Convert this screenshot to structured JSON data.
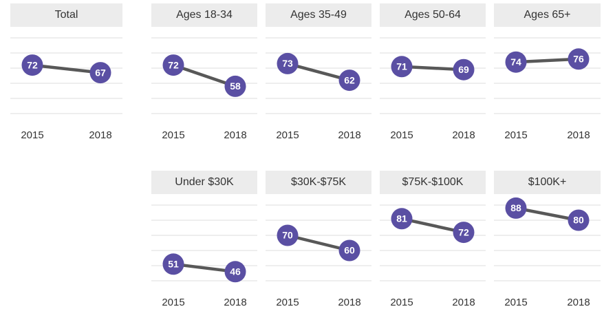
{
  "chart_data": [
    {
      "type": "line",
      "title": "Total",
      "categories": [
        "2015",
        "2018"
      ],
      "values": [
        72,
        67
      ],
      "color": "#5a4fa3",
      "ylim": [
        40,
        90
      ],
      "yticks": [
        40,
        50,
        60,
        70,
        80,
        90
      ],
      "grid": true
    },
    {
      "type": "line",
      "title": "Ages 18-34",
      "categories": [
        "2015",
        "2018"
      ],
      "values": [
        72,
        58
      ],
      "color": "#5a4fa3",
      "ylim": [
        40,
        90
      ],
      "yticks": [
        40,
        50,
        60,
        70,
        80,
        90
      ],
      "grid": true
    },
    {
      "type": "line",
      "title": "Ages 35-49",
      "categories": [
        "2015",
        "2018"
      ],
      "values": [
        73,
        62
      ],
      "color": "#5a4fa3",
      "ylim": [
        40,
        90
      ],
      "yticks": [
        40,
        50,
        60,
        70,
        80,
        90
      ],
      "grid": true
    },
    {
      "type": "line",
      "title": "Ages 50-64",
      "categories": [
        "2015",
        "2018"
      ],
      "values": [
        71,
        69
      ],
      "color": "#5a4fa3",
      "ylim": [
        40,
        90
      ],
      "yticks": [
        40,
        50,
        60,
        70,
        80,
        90
      ],
      "grid": true
    },
    {
      "type": "line",
      "title": "Ages 65+",
      "categories": [
        "2015",
        "2018"
      ],
      "values": [
        74,
        76
      ],
      "color": "#5a4fa3",
      "ylim": [
        40,
        90
      ],
      "yticks": [
        40,
        50,
        60,
        70,
        80,
        90
      ],
      "grid": true
    },
    {
      "type": "line",
      "title": "Under $30K",
      "categories": [
        "2015",
        "2018"
      ],
      "values": [
        51,
        46
      ],
      "color": "#5a4fa3",
      "ylim": [
        40,
        90
      ],
      "yticks": [
        40,
        50,
        60,
        70,
        80,
        90
      ],
      "grid": true
    },
    {
      "type": "line",
      "title": "$30K-$75K",
      "categories": [
        "2015",
        "2018"
      ],
      "values": [
        70,
        60
      ],
      "color": "#5a4fa3",
      "ylim": [
        40,
        90
      ],
      "yticks": [
        40,
        50,
        60,
        70,
        80,
        90
      ],
      "grid": true
    },
    {
      "type": "line",
      "title": "$75K-$100K",
      "categories": [
        "2015",
        "2018"
      ],
      "values": [
        81,
        72
      ],
      "color": "#5a4fa3",
      "ylim": [
        40,
        90
      ],
      "yticks": [
        40,
        50,
        60,
        70,
        80,
        90
      ],
      "grid": true
    },
    {
      "type": "line",
      "title": "$100K+",
      "categories": [
        "2015",
        "2018"
      ],
      "values": [
        88,
        80
      ],
      "color": "#5a4fa3",
      "ylim": [
        40,
        90
      ],
      "yticks": [
        40,
        50,
        60,
        70,
        80,
        90
      ],
      "grid": true
    }
  ]
}
